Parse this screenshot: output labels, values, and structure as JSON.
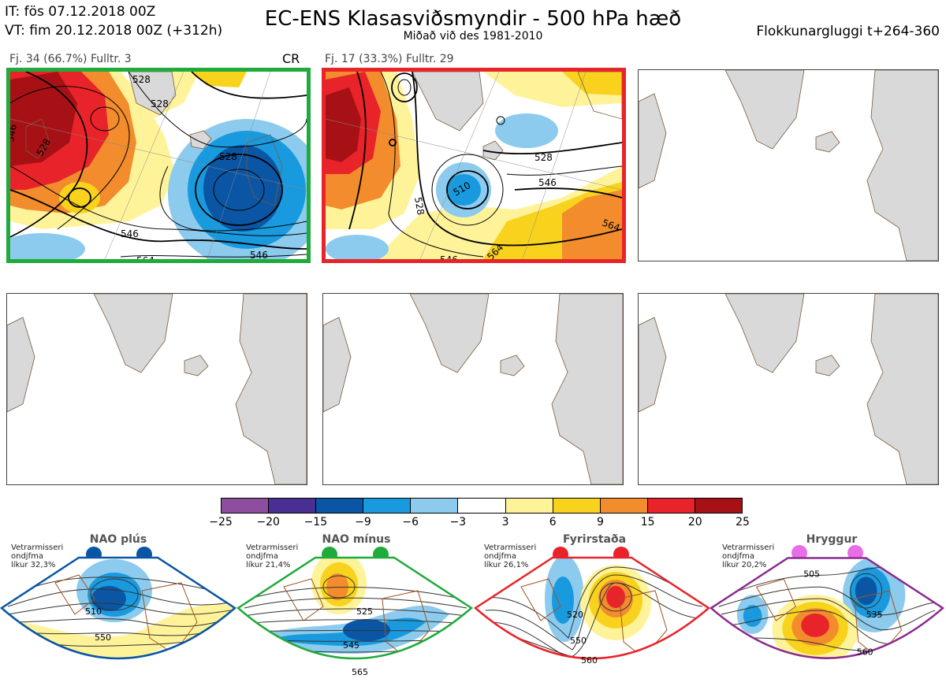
{
  "header": {
    "it_line": "IT: fös 07.12.2018 00Z",
    "vt_line": "VT: fim 20.12.2018 00Z  (+312h)",
    "title": "EC-ENS Klasasviðsmyndir - 500 hPa hæð",
    "subtitle": "Miðað við des 1981-2010",
    "window": "Flokkunargluggi t+264-360"
  },
  "panels": [
    {
      "label": "Fj. 34 (66.7%)   Fulltr. 3",
      "tag": "CR",
      "border": "#1faa3c",
      "contour_labels": [
        "528",
        "528",
        "528",
        "546",
        "546",
        "564",
        "528",
        "546"
      ]
    },
    {
      "label": "Fj. 17 (33.3%)   Fulltr. 29",
      "tag": "",
      "border": "#e8242a",
      "contour_labels": [
        "510",
        "528",
        "528",
        "546",
        "546",
        "564",
        "564"
      ]
    }
  ],
  "colorbar": {
    "ticks": [
      "−25",
      "−20",
      "−15",
      "−9",
      "−6",
      "−3",
      "3",
      "6",
      "9",
      "15",
      "20",
      "25"
    ],
    "colors": [
      "#8e4ea0",
      "#4a2f93",
      "#0a56a4",
      "#1a9ade",
      "#8ccbee",
      "#ffffff",
      "#fff39a",
      "#f9d21e",
      "#f28c2c",
      "#e8242a",
      "#a71115"
    ]
  },
  "regimes": [
    {
      "name": "NAO plús",
      "note1": "Vetrarmisseri",
      "note2": "ondjfma",
      "note3": "líkur 32,3%",
      "color": "#0a56a4",
      "labels": [
        "510",
        "550"
      ]
    },
    {
      "name": "NAO mínus",
      "note1": "Vetrarmisseri",
      "note2": "ondjfma",
      "note3": "líkur 21,4%",
      "color": "#1faa3c",
      "labels": [
        "525",
        "545",
        "565"
      ]
    },
    {
      "name": "Fyrirstaða",
      "note1": "Vetrarmisseri",
      "note2": "ondjfma",
      "note3": "líkur 26,1%",
      "color": "#e8242a",
      "labels": [
        "520",
        "550",
        "560"
      ]
    },
    {
      "name": "Hryggur",
      "note1": "Vetrarmisseri",
      "note2": "ondjfma",
      "note3": "líkur 20,2%",
      "color": "#e86ee8",
      "labels": [
        "505",
        "535",
        "560"
      ]
    }
  ]
}
